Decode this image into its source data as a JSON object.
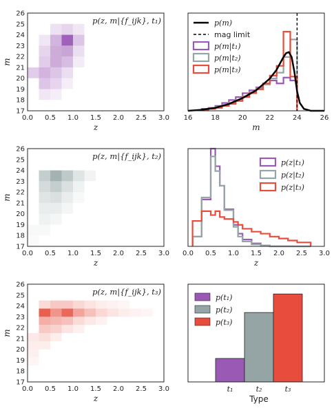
{
  "colors": {
    "t1": "#9b59b6",
    "t2": "#95a5a6",
    "t3": "#e74c3c",
    "curve": "#000000"
  },
  "chart_data": [
    {
      "id": "heat1",
      "type": "heatmap",
      "color_key": "t1",
      "annotation": "p(z, m|{f_ijk}, t₁)",
      "xlabel": "z",
      "ylabel": "m",
      "xlim": [
        0,
        3
      ],
      "ylim": [
        17,
        26
      ],
      "xticks": [
        "0.0",
        "0.5",
        "1.0",
        "1.5",
        "2.0",
        "2.5",
        "3.0"
      ],
      "yticks": [
        "17",
        "18",
        "19",
        "20",
        "21",
        "22",
        "23",
        "24",
        "25",
        "26"
      ],
      "cells": [
        [
          0.5,
          24,
          0.18
        ],
        [
          0.75,
          24,
          0.25
        ],
        [
          1.0,
          24,
          0.15
        ],
        [
          0.25,
          23,
          0.15
        ],
        [
          0.5,
          23,
          0.45
        ],
        [
          0.75,
          23,
          0.95
        ],
        [
          1.0,
          23,
          0.35
        ],
        [
          0.25,
          22,
          0.25
        ],
        [
          0.5,
          22,
          0.5
        ],
        [
          0.75,
          22,
          0.55
        ],
        [
          1.0,
          22,
          0.2
        ],
        [
          0.25,
          21,
          0.3
        ],
        [
          0.5,
          21,
          0.5
        ],
        [
          0.75,
          21,
          0.4
        ],
        [
          1.0,
          21,
          0.12
        ],
        [
          0.0,
          20,
          0.3
        ],
        [
          0.25,
          20,
          0.45
        ],
        [
          0.5,
          20,
          0.35
        ],
        [
          0.75,
          20,
          0.2
        ],
        [
          0.25,
          19,
          0.35
        ],
        [
          0.5,
          19,
          0.25
        ],
        [
          0.75,
          19,
          0.1
        ],
        [
          0.25,
          18,
          0.15
        ],
        [
          0.5,
          18,
          0.1
        ]
      ]
    },
    {
      "id": "heat2",
      "type": "heatmap",
      "color_key": "t2",
      "annotation": "p(z, m|{f_ijk}, t₂)",
      "xlabel": "z",
      "ylabel": "m",
      "xlim": [
        0,
        3
      ],
      "ylim": [
        17,
        26
      ],
      "xticks": [
        "0.0",
        "0.5",
        "1.0",
        "1.5",
        "2.0",
        "2.5",
        "3.0"
      ],
      "yticks": [
        "17",
        "18",
        "19",
        "20",
        "21",
        "22",
        "23",
        "24",
        "25",
        "26"
      ],
      "cells": [
        [
          0.25,
          23,
          0.55
        ],
        [
          0.5,
          23,
          0.85
        ],
        [
          0.75,
          23,
          0.6
        ],
        [
          1.0,
          23,
          0.3
        ],
        [
          1.25,
          23,
          0.12
        ],
        [
          0.25,
          22,
          0.4
        ],
        [
          0.5,
          22,
          0.55
        ],
        [
          0.75,
          22,
          0.35
        ],
        [
          1.0,
          22,
          0.15
        ],
        [
          0.25,
          21,
          0.3
        ],
        [
          0.5,
          21,
          0.35
        ],
        [
          0.75,
          21,
          0.2
        ],
        [
          1.0,
          21,
          0.08
        ],
        [
          0.25,
          20,
          0.2
        ],
        [
          0.5,
          20,
          0.2
        ],
        [
          0.75,
          20,
          0.1
        ],
        [
          0.25,
          19,
          0.15
        ],
        [
          0.5,
          19,
          0.1
        ],
        [
          0.0,
          18,
          0.08
        ],
        [
          0.25,
          18,
          0.08
        ],
        [
          0.0,
          17,
          0.05
        ]
      ]
    },
    {
      "id": "heat3",
      "type": "heatmap",
      "color_key": "t3",
      "annotation": "p(z, m|{f_ijk}, t₃)",
      "xlabel": "z",
      "ylabel": "m",
      "xlim": [
        0,
        3
      ],
      "ylim": [
        17,
        26
      ],
      "xticks": [
        "0.0",
        "0.5",
        "1.0",
        "1.5",
        "2.0",
        "2.5",
        "3.0"
      ],
      "yticks": [
        "17",
        "18",
        "19",
        "20",
        "21",
        "22",
        "23",
        "24",
        "25",
        "26"
      ],
      "cells": [
        [
          0.25,
          23.75,
          0.2
        ],
        [
          0.5,
          23.75,
          0.3
        ],
        [
          0.75,
          23.75,
          0.3
        ],
        [
          1.0,
          23.75,
          0.22
        ],
        [
          1.25,
          23.75,
          0.15
        ],
        [
          1.5,
          23.75,
          0.1
        ],
        [
          1.75,
          23.75,
          0.07
        ],
        [
          2.0,
          23.75,
          0.05
        ],
        [
          0.25,
          23,
          0.9
        ],
        [
          0.5,
          23,
          0.6
        ],
        [
          0.75,
          23,
          0.85
        ],
        [
          1.0,
          23,
          0.5
        ],
        [
          1.25,
          23,
          0.35
        ],
        [
          1.5,
          23,
          0.22
        ],
        [
          1.75,
          23,
          0.15
        ],
        [
          2.0,
          23,
          0.1
        ],
        [
          2.25,
          23,
          0.07
        ],
        [
          2.5,
          23,
          0.05
        ],
        [
          0.25,
          22.25,
          0.45
        ],
        [
          0.5,
          22.25,
          0.4
        ],
        [
          0.75,
          22.25,
          0.35
        ],
        [
          1.0,
          22.25,
          0.2
        ],
        [
          1.25,
          22.25,
          0.12
        ],
        [
          1.5,
          22.25,
          0.07
        ],
        [
          0.25,
          21.5,
          0.3
        ],
        [
          0.5,
          21.5,
          0.25
        ],
        [
          0.75,
          21.5,
          0.15
        ],
        [
          1.0,
          21.5,
          0.08
        ],
        [
          0.0,
          20.75,
          0.12
        ],
        [
          0.25,
          20.75,
          0.18
        ],
        [
          0.5,
          20.75,
          0.1
        ],
        [
          0.0,
          20,
          0.1
        ],
        [
          0.25,
          20,
          0.1
        ],
        [
          0.0,
          19.25,
          0.08
        ],
        [
          0.0,
          18.5,
          0.05
        ]
      ]
    },
    {
      "id": "hist_m",
      "type": "line",
      "xlabel": "m",
      "xlim": [
        16,
        26
      ],
      "xticks": [
        "16",
        "18",
        "20",
        "22",
        "24",
        "26"
      ],
      "vline_x": 24,
      "ymax": 1.0,
      "legend": [
        "p(m)",
        "mag limit",
        "p(m|t₁)",
        "p(m|t₂)",
        "p(m|t₃)"
      ],
      "bin_edges": [
        17,
        17.5,
        18,
        18.5,
        19,
        19.5,
        20,
        20.5,
        21,
        21.5,
        22,
        22.5,
        23,
        23.5,
        24
      ],
      "series": [
        {
          "name": "p(m|t₁)",
          "color_key": "t1",
          "values": [
            0.02,
            0.03,
            0.05,
            0.08,
            0.11,
            0.14,
            0.18,
            0.21,
            0.24,
            0.27,
            0.31,
            0.28,
            0.34,
            0.31
          ]
        },
        {
          "name": "p(m|t₂)",
          "color_key": "t2",
          "values": [
            0.01,
            0.02,
            0.04,
            0.06,
            0.08,
            0.11,
            0.15,
            0.19,
            0.23,
            0.27,
            0.33,
            0.39,
            0.55,
            0.73
          ]
        },
        {
          "name": "p(m|t₃)",
          "color_key": "t3",
          "values": [
            0.01,
            0.02,
            0.03,
            0.05,
            0.07,
            0.1,
            0.14,
            0.18,
            0.22,
            0.28,
            0.36,
            0.46,
            0.81,
            0.35
          ]
        }
      ],
      "curve": {
        "name": "p(m)",
        "x": [
          16,
          17,
          17.5,
          18,
          18.5,
          19,
          19.5,
          20,
          20.5,
          21,
          21.5,
          22,
          22.5,
          23,
          23.2,
          23.4,
          23.6,
          23.8,
          24,
          24.2,
          24.5,
          25,
          26
        ],
        "y": [
          0,
          0.01,
          0.02,
          0.03,
          0.05,
          0.07,
          0.1,
          0.13,
          0.17,
          0.21,
          0.27,
          0.33,
          0.42,
          0.55,
          0.59,
          0.6,
          0.55,
          0.4,
          0.2,
          0.08,
          0.02,
          0,
          0
        ]
      }
    },
    {
      "id": "hist_z",
      "type": "line",
      "xlabel": "z",
      "xlim": [
        0,
        3
      ],
      "xticks": [
        "0.0",
        "0.5",
        "1.0",
        "1.5",
        "2.0",
        "2.5",
        "3.0"
      ],
      "ymax": 1.0,
      "legend": [
        "p(z|t₁)",
        "p(z|t₂)",
        "p(z|t₃)"
      ],
      "bin_edges": [
        0.1,
        0.3,
        0.5,
        0.6,
        0.7,
        0.8,
        1.0,
        1.1,
        1.2,
        1.4,
        1.6,
        1.8,
        2.0,
        2.2,
        2.4,
        2.7
      ],
      "series": [
        {
          "name": "p(z|t₁)",
          "color_key": "t1",
          "values": [
            0.1,
            0.48,
            1.0,
            0.82,
            0.62,
            0.38,
            0.22,
            0.13,
            0.07,
            0.03,
            0.01,
            0,
            0,
            0,
            0
          ]
        },
        {
          "name": "p(z|t₂)",
          "color_key": "t2",
          "values": [
            0.1,
            0.5,
            0.92,
            0.77,
            0.62,
            0.37,
            0.2,
            0.1,
            0.05,
            0.02,
            0.01,
            0,
            0,
            0,
            0
          ]
        },
        {
          "name": "p(z|t₃)",
          "color_key": "t3",
          "values": [
            0.26,
            0.36,
            0.32,
            0.36,
            0.3,
            0.28,
            0.25,
            0.22,
            0.18,
            0.15,
            0.13,
            0.1,
            0.08,
            0.06,
            0.04
          ]
        }
      ]
    },
    {
      "id": "bar_type",
      "type": "bar",
      "xlabel": "Type",
      "ymax": 1.0,
      "categories": [
        "t₁",
        "t₂",
        "t₃"
      ],
      "legend": [
        "p(t₁)",
        "p(t₂)",
        "p(t₃)"
      ],
      "values": [
        0.24,
        0.71,
        0.9
      ]
    }
  ]
}
